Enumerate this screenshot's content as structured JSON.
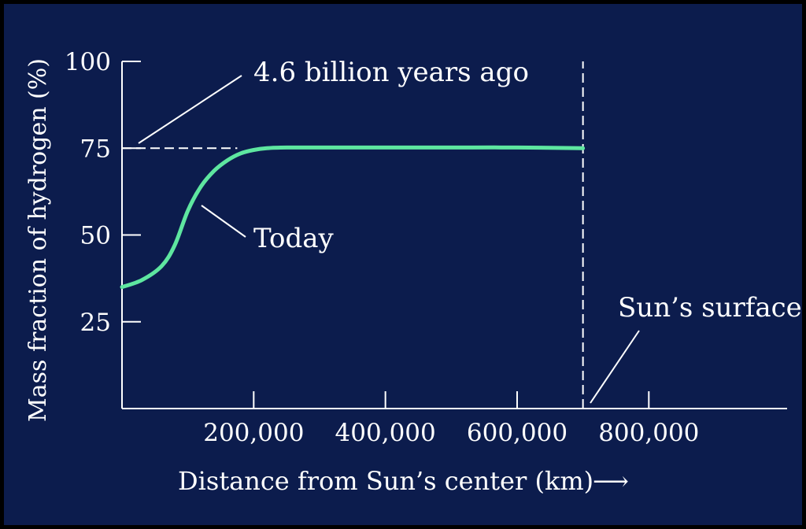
{
  "colors": {
    "frame": "#000000",
    "background": "#0c1c4d",
    "axis": "#ffffff",
    "today_curve": "#5ee6a0",
    "reference": "#ffffff"
  },
  "chart_data": {
    "type": "line",
    "title": "",
    "xlabel": "Distance from Sun’s center (km)",
    "xlabel_arrow": "⟶",
    "ylabel": "Mass fraction of hydrogen (%)",
    "xlim": [
      0,
      1010000
    ],
    "ylim": [
      0,
      100
    ],
    "x_ticks": [
      200000,
      400000,
      600000,
      800000
    ],
    "x_tick_labels": [
      "200,000",
      "400,000",
      "600,000",
      "800,000"
    ],
    "y_ticks": [
      25,
      50,
      75,
      100
    ],
    "y_tick_labels": [
      "25",
      "50",
      "75",
      "100"
    ],
    "grid": false,
    "legend": "none",
    "series": [
      {
        "name": "Today",
        "x": [
          0,
          30000,
          60000,
          80000,
          100000,
          120000,
          140000,
          160000,
          180000,
          200000,
          220000,
          250000,
          300000,
          400000,
          500000,
          600000,
          700000
        ],
        "y": [
          35,
          37,
          41,
          47,
          57,
          64,
          68.5,
          71.5,
          73.5,
          74.5,
          75,
          75.2,
          75.2,
          75.2,
          75.2,
          75.2,
          75
        ]
      },
      {
        "name": "4.6 billion years ago",
        "x": [
          0,
          175000
        ],
        "y": [
          75,
          75
        ]
      }
    ],
    "surface_x": 700000,
    "annotations": {
      "ago": "4.6 billion years ago",
      "today": "Today",
      "surface": "Sun’s surface"
    }
  }
}
